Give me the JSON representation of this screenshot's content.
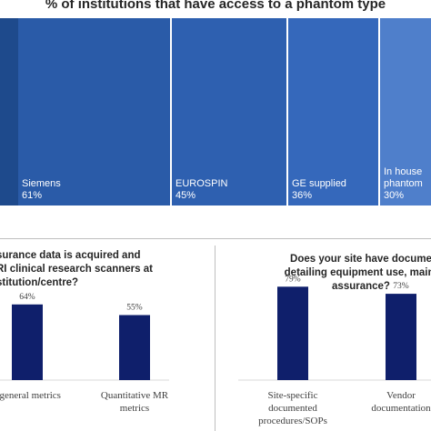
{
  "chart_data": [
    {
      "type": "treemap",
      "title": "% of institutions that have access to a phantom type",
      "items": [
        {
          "label": "",
          "value": null,
          "color": "#1e4a8c"
        },
        {
          "label": "Siemens",
          "value_label": "61%",
          "value": 61,
          "color": "#2a5ba8"
        },
        {
          "label": "EUROSPIN",
          "value_label": "45%",
          "value": 45,
          "color": "#2e60b0"
        },
        {
          "label": "GE supplied",
          "value_label": "36%",
          "value": 36,
          "color": "#3568bb"
        },
        {
          "label": "In house phantom",
          "label_lines": [
            "In house",
            "phantom"
          ],
          "value_label": "30%",
          "value": 30,
          "color": "#4f7fcb"
        }
      ]
    },
    {
      "type": "bar",
      "title_lines": [
        "surance data is acquired and",
        "RI clinical research scanners at",
        "stitution/centre?"
      ],
      "categories": [
        "r general metrics",
        "Quantitative MR metrics"
      ],
      "category_lines": [
        [
          "r general metrics"
        ],
        [
          "Quantitative MR",
          "metrics"
        ]
      ],
      "values": [
        64,
        55
      ],
      "value_labels": [
        "64%",
        "55%"
      ],
      "bar_color": "#0f1f6b",
      "ylim": [
        0,
        100
      ]
    },
    {
      "type": "bar",
      "title_lines": [
        "Does your site have docume",
        "detailing equipment use, maint",
        "assurance?"
      ],
      "categories": [
        "Site-specific documented procedures/SOPs",
        "Vendor documentation"
      ],
      "category_lines": [
        [
          "Site-specific",
          "documented",
          "procedures/SOPs"
        ],
        [
          "Vendor",
          "documentation"
        ]
      ],
      "values": [
        79,
        73
      ],
      "value_labels": [
        "79%",
        "73%"
      ],
      "bar_color": "#0f1f6b",
      "ylim": [
        0,
        100
      ]
    }
  ]
}
